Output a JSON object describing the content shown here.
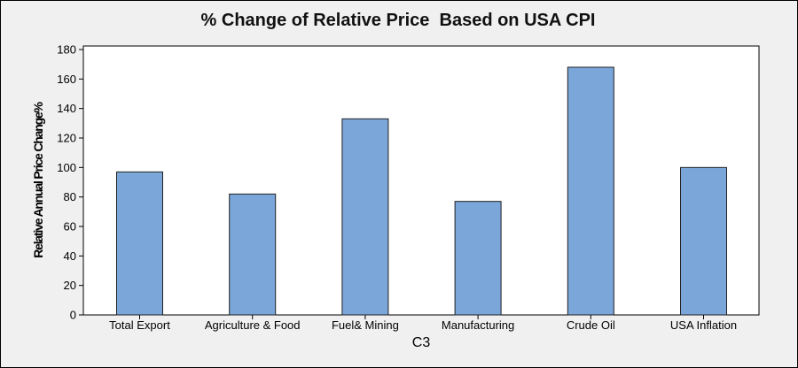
{
  "chart_data": {
    "type": "bar",
    "title": "% Change of Relative Price  Based on USA CPI",
    "xlabel": "C3",
    "ylabel": "Relative Annual Price Change%",
    "categories": [
      "Total Export",
      "Agriculture & Food",
      "Fuel& Mining",
      "Manufacturing",
      "Crude Oil",
      "USA Inflation"
    ],
    "values": [
      97,
      82,
      133,
      77,
      168,
      100
    ],
    "ylim": [
      0,
      180
    ],
    "yticks": [
      0,
      20,
      40,
      60,
      80,
      100,
      120,
      140,
      160,
      180
    ],
    "bar_color": "#7aa6da",
    "grid": false,
    "legend": "none"
  }
}
